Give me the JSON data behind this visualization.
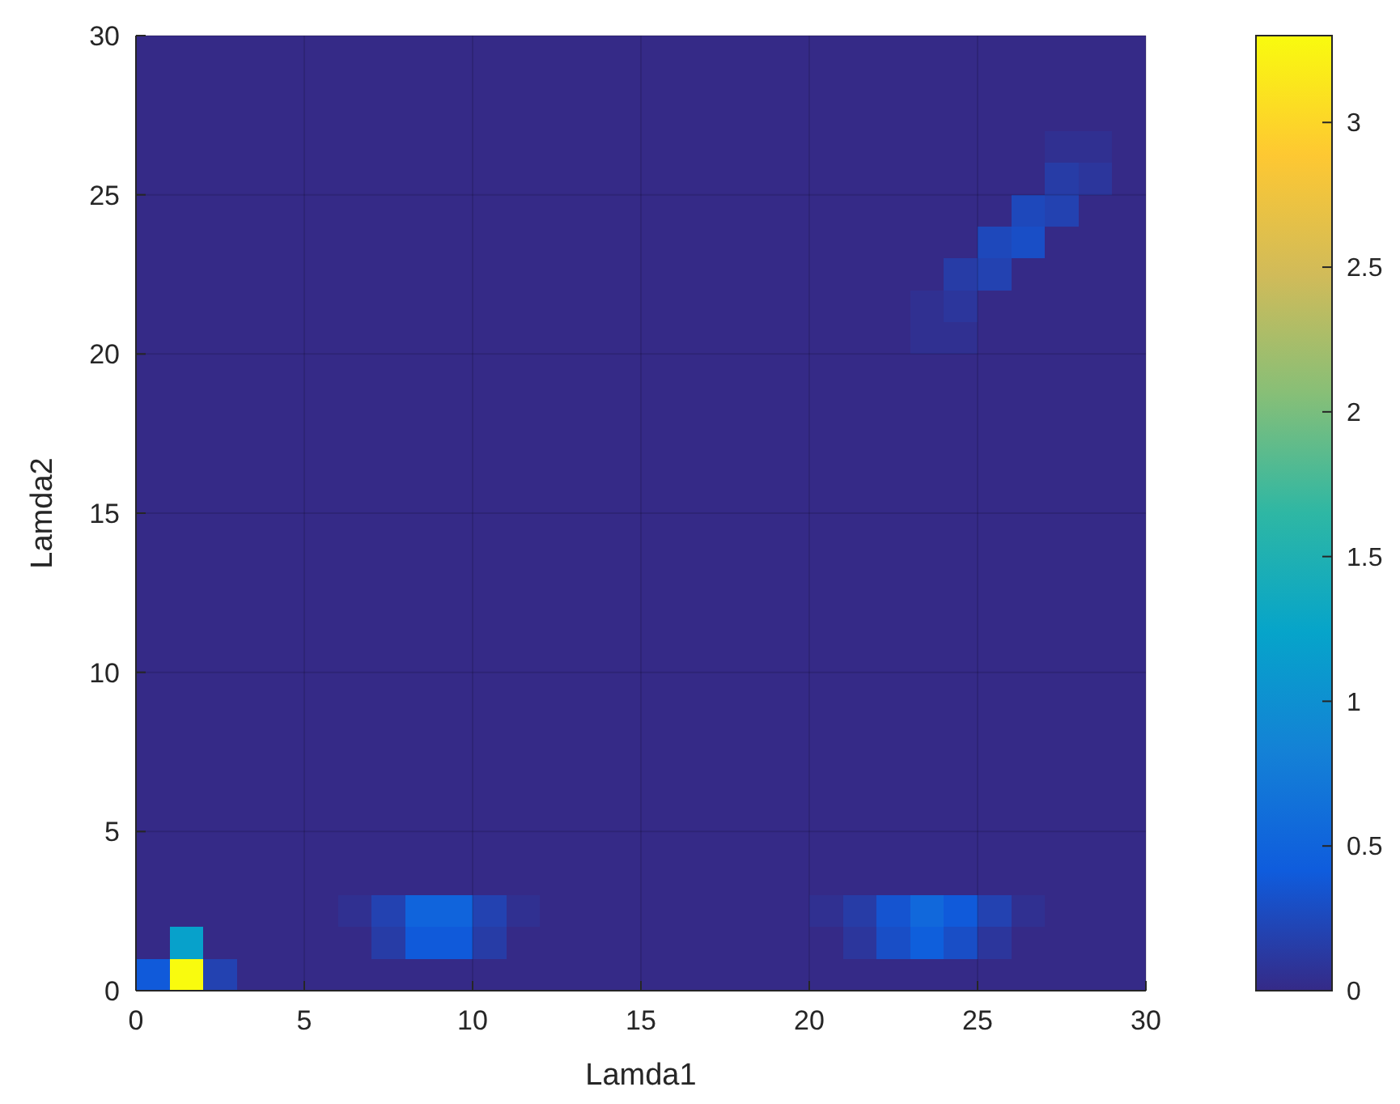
{
  "chart_data": {
    "type": "heatmap",
    "xlabel": "Lamda1",
    "ylabel": "Lamda2",
    "xlim": [
      0,
      30
    ],
    "ylim": [
      0,
      30
    ],
    "xticks": [
      0,
      5,
      10,
      15,
      20,
      25,
      30
    ],
    "yticks": [
      0,
      5,
      10,
      15,
      20,
      25,
      30
    ],
    "grid": true,
    "clim": [
      0,
      3.3
    ],
    "cticks": [
      0,
      0.5,
      1,
      1.5,
      2,
      2.5,
      3
    ],
    "cells": [
      [
        0,
        0,
        0,
        0,
        0,
        0,
        0,
        0,
        0,
        0,
        0,
        0,
        0,
        0,
        0,
        0,
        0,
        0,
        0,
        0,
        0,
        0,
        0,
        0,
        0,
        0,
        0,
        0,
        0,
        0
      ],
      [
        0,
        0,
        0,
        0,
        0,
        0,
        0,
        0,
        0,
        0,
        0,
        0,
        0,
        0,
        0,
        0,
        0,
        0,
        0,
        0,
        0,
        0,
        0,
        0,
        0,
        0,
        0,
        0,
        0,
        0
      ],
      [
        0,
        0,
        0,
        0,
        0,
        0,
        0,
        0,
        0,
        0,
        0,
        0,
        0,
        0,
        0,
        0,
        0,
        0,
        0,
        0,
        0,
        0,
        0,
        0,
        0,
        0,
        0,
        0,
        0,
        0
      ],
      [
        0,
        0,
        0,
        0,
        0,
        0,
        0,
        0,
        0,
        0,
        0,
        0,
        0,
        0,
        0,
        0,
        0,
        0,
        0,
        0,
        0,
        0,
        0,
        0,
        0,
        0,
        0,
        0.05,
        0.05,
        0
      ],
      [
        0,
        0,
        0,
        0,
        0,
        0,
        0,
        0,
        0,
        0,
        0,
        0,
        0,
        0,
        0,
        0,
        0,
        0,
        0,
        0,
        0,
        0,
        0,
        0,
        0,
        0,
        0,
        0.15,
        0.1,
        0
      ],
      [
        0,
        0,
        0,
        0,
        0,
        0,
        0,
        0,
        0,
        0,
        0,
        0,
        0,
        0,
        0,
        0,
        0,
        0,
        0,
        0,
        0,
        0,
        0,
        0,
        0,
        0,
        0.25,
        0.2,
        0,
        0
      ],
      [
        0,
        0,
        0,
        0,
        0,
        0,
        0,
        0,
        0,
        0,
        0,
        0,
        0,
        0,
        0,
        0,
        0,
        0,
        0,
        0,
        0,
        0,
        0,
        0,
        0,
        0.25,
        0.3,
        0,
        0,
        0
      ],
      [
        0,
        0,
        0,
        0,
        0,
        0,
        0,
        0,
        0,
        0,
        0,
        0,
        0,
        0,
        0,
        0,
        0,
        0,
        0,
        0,
        0,
        0,
        0,
        0,
        0.15,
        0.2,
        0,
        0,
        0,
        0
      ],
      [
        0,
        0,
        0,
        0,
        0,
        0,
        0,
        0,
        0,
        0,
        0,
        0,
        0,
        0,
        0,
        0,
        0,
        0,
        0,
        0,
        0,
        0,
        0,
        0.05,
        0.1,
        0,
        0,
        0,
        0,
        0
      ],
      [
        0,
        0,
        0,
        0,
        0,
        0,
        0,
        0,
        0,
        0,
        0,
        0,
        0,
        0,
        0,
        0,
        0,
        0,
        0,
        0,
        0,
        0,
        0,
        0.05,
        0.05,
        0,
        0,
        0,
        0,
        0
      ],
      [
        0,
        0,
        0,
        0,
        0,
        0,
        0,
        0,
        0,
        0,
        0,
        0,
        0,
        0,
        0,
        0,
        0,
        0,
        0,
        0,
        0,
        0,
        0,
        0,
        0,
        0,
        0,
        0,
        0,
        0
      ],
      [
        0,
        0,
        0,
        0,
        0,
        0,
        0,
        0,
        0,
        0,
        0,
        0,
        0,
        0,
        0,
        0,
        0,
        0,
        0,
        0,
        0,
        0,
        0,
        0,
        0,
        0,
        0,
        0,
        0,
        0
      ],
      [
        0,
        0,
        0,
        0,
        0,
        0,
        0,
        0,
        0,
        0,
        0,
        0,
        0,
        0,
        0,
        0,
        0,
        0,
        0,
        0,
        0,
        0,
        0,
        0,
        0,
        0,
        0,
        0,
        0,
        0
      ],
      [
        0,
        0,
        0,
        0,
        0,
        0,
        0,
        0,
        0,
        0,
        0,
        0,
        0,
        0,
        0,
        0,
        0,
        0,
        0,
        0,
        0,
        0,
        0,
        0,
        0,
        0,
        0,
        0,
        0,
        0
      ],
      [
        0,
        0,
        0,
        0,
        0,
        0,
        0,
        0,
        0,
        0,
        0,
        0,
        0,
        0,
        0,
        0,
        0,
        0,
        0,
        0,
        0,
        0,
        0,
        0,
        0,
        0,
        0,
        0,
        0,
        0
      ],
      [
        0,
        0,
        0,
        0,
        0,
        0,
        0,
        0,
        0,
        0,
        0,
        0,
        0,
        0,
        0,
        0,
        0,
        0,
        0,
        0,
        0,
        0,
        0,
        0,
        0,
        0,
        0,
        0,
        0,
        0
      ],
      [
        0,
        0,
        0,
        0,
        0,
        0,
        0,
        0,
        0,
        0,
        0,
        0,
        0,
        0,
        0,
        0,
        0,
        0,
        0,
        0,
        0,
        0,
        0,
        0,
        0,
        0,
        0,
        0,
        0,
        0
      ],
      [
        0,
        0,
        0,
        0,
        0,
        0,
        0,
        0,
        0,
        0,
        0,
        0,
        0,
        0,
        0,
        0,
        0,
        0,
        0,
        0,
        0,
        0,
        0,
        0,
        0,
        0,
        0,
        0,
        0,
        0
      ],
      [
        0,
        0,
        0,
        0,
        0,
        0,
        0,
        0,
        0,
        0,
        0,
        0,
        0,
        0,
        0,
        0,
        0,
        0,
        0,
        0,
        0,
        0,
        0,
        0,
        0,
        0,
        0,
        0,
        0,
        0
      ],
      [
        0,
        0,
        0,
        0,
        0,
        0,
        0,
        0,
        0,
        0,
        0,
        0,
        0,
        0,
        0,
        0,
        0,
        0,
        0,
        0,
        0,
        0,
        0,
        0,
        0,
        0,
        0,
        0,
        0,
        0
      ],
      [
        0,
        0,
        0,
        0,
        0,
        0,
        0,
        0,
        0,
        0,
        0,
        0,
        0,
        0,
        0,
        0,
        0,
        0,
        0,
        0,
        0,
        0,
        0,
        0,
        0,
        0,
        0,
        0,
        0,
        0
      ],
      [
        0,
        0,
        0,
        0,
        0,
        0,
        0,
        0,
        0,
        0,
        0,
        0,
        0,
        0,
        0,
        0,
        0,
        0,
        0,
        0,
        0,
        0,
        0,
        0,
        0,
        0,
        0,
        0,
        0,
        0
      ],
      [
        0,
        0,
        0,
        0,
        0,
        0,
        0,
        0,
        0,
        0,
        0,
        0,
        0,
        0,
        0,
        0,
        0,
        0,
        0,
        0,
        0,
        0,
        0,
        0,
        0,
        0,
        0,
        0,
        0,
        0
      ],
      [
        0,
        0,
        0,
        0,
        0,
        0,
        0,
        0,
        0,
        0,
        0,
        0,
        0,
        0,
        0,
        0,
        0,
        0,
        0,
        0,
        0,
        0,
        0,
        0,
        0,
        0,
        0,
        0,
        0,
        0
      ],
      [
        0,
        0,
        0,
        0,
        0,
        0,
        0,
        0,
        0,
        0,
        0,
        0,
        0,
        0,
        0,
        0,
        0,
        0,
        0,
        0,
        0,
        0,
        0,
        0,
        0,
        0,
        0,
        0,
        0,
        0
      ],
      [
        0,
        0,
        0,
        0,
        0,
        0,
        0,
        0,
        0,
        0,
        0,
        0,
        0,
        0,
        0,
        0,
        0,
        0,
        0,
        0,
        0,
        0,
        0,
        0,
        0,
        0,
        0,
        0,
        0,
        0
      ],
      [
        0,
        0,
        0,
        0,
        0,
        0,
        0,
        0,
        0,
        0,
        0,
        0,
        0,
        0,
        0,
        0,
        0,
        0,
        0,
        0,
        0,
        0,
        0,
        0,
        0,
        0,
        0,
        0,
        0,
        0
      ],
      [
        0,
        0,
        0,
        0,
        0,
        0,
        0.05,
        0.2,
        0.5,
        0.5,
        0.2,
        0.05,
        0,
        0,
        0,
        0,
        0,
        0,
        0,
        0,
        0.05,
        0.15,
        0.35,
        0.55,
        0.4,
        0.2,
        0.05,
        0,
        0,
        0
      ],
      [
        0,
        1.2,
        0,
        0,
        0,
        0,
        0,
        0.15,
        0.4,
        0.4,
        0.15,
        0,
        0,
        0,
        0,
        0,
        0,
        0,
        0,
        0,
        0,
        0.1,
        0.3,
        0.45,
        0.3,
        0.1,
        0,
        0,
        0,
        0
      ],
      [
        0.4,
        3.3,
        0.2,
        0,
        0,
        0,
        0,
        0,
        0,
        0,
        0,
        0,
        0,
        0,
        0,
        0,
        0,
        0,
        0,
        0,
        0,
        0,
        0,
        0,
        0,
        0,
        0,
        0,
        0,
        0
      ]
    ]
  }
}
